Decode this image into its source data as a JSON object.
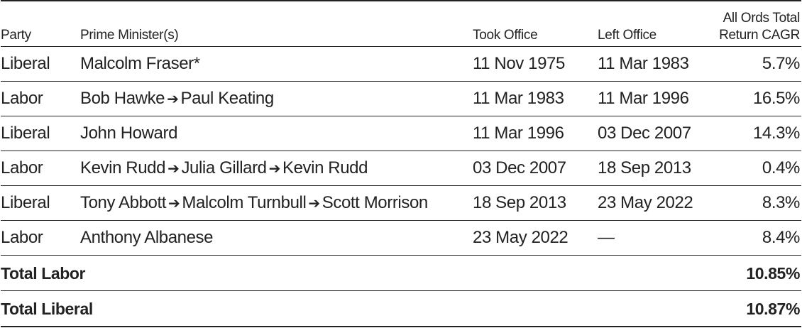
{
  "headers": {
    "party": "Party",
    "pm": "Prime Minister(s)",
    "took_office": "Took Office",
    "left_office": "Left Office",
    "cagr_line1": "All Ords Total",
    "cagr_line2": "Return CAGR"
  },
  "arrow_glyph": "➔",
  "rows": [
    {
      "party": "Liberal",
      "pms": [
        "Malcolm Fraser*"
      ],
      "took_office": "11 Nov 1975",
      "left_office": "11 Mar 1983",
      "cagr": "5.7%"
    },
    {
      "party": "Labor",
      "pms": [
        "Bob Hawke",
        "Paul Keating"
      ],
      "took_office": "11 Mar 1983",
      "left_office": "11 Mar 1996",
      "cagr": "16.5%"
    },
    {
      "party": "Liberal",
      "pms": [
        "John Howard"
      ],
      "took_office": "11 Mar 1996",
      "left_office": "03 Dec 2007",
      "cagr": "14.3%"
    },
    {
      "party": "Labor",
      "pms": [
        "Kevin Rudd",
        "Julia Gillard",
        "Kevin Rudd"
      ],
      "took_office": "03 Dec 2007",
      "left_office": "18 Sep 2013",
      "cagr": "0.4%"
    },
    {
      "party": "Liberal",
      "pms": [
        "Tony Abbott",
        "Malcolm Turnbull",
        "Scott Morrison"
      ],
      "took_office": "18 Sep 2013",
      "left_office": "23 May 2022",
      "cagr": "8.3%"
    },
    {
      "party": "Labor",
      "pms": [
        "Anthony Albanese"
      ],
      "took_office": "23 May 2022",
      "left_office": "—",
      "cagr": "8.4%"
    }
  ],
  "totals": [
    {
      "label": "Total Labor",
      "value": "10.85%"
    },
    {
      "label": "Total Liberal",
      "value": "10.87%"
    }
  ]
}
